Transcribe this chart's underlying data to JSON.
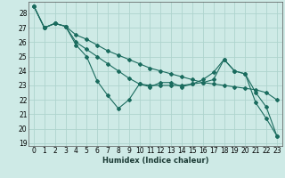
{
  "xlabel": "Humidex (Indice chaleur)",
  "bg_color": "#ceeae6",
  "grid_color": "#aed4ce",
  "line_color": "#1a6b5e",
  "xlim": [
    -0.5,
    23.5
  ],
  "ylim": [
    18.8,
    28.8
  ],
  "yticks": [
    19,
    20,
    21,
    22,
    23,
    24,
    25,
    26,
    27,
    28
  ],
  "xticks": [
    0,
    1,
    2,
    3,
    4,
    5,
    6,
    7,
    8,
    9,
    10,
    11,
    12,
    13,
    14,
    15,
    16,
    17,
    18,
    19,
    20,
    21,
    22,
    23
  ],
  "series": [
    [
      28.5,
      27.0,
      27.3,
      27.1,
      25.8,
      25.0,
      23.3,
      22.3,
      21.4,
      22.0,
      23.1,
      22.9,
      23.2,
      23.2,
      22.9,
      23.1,
      23.4,
      23.9,
      24.8,
      24.0,
      23.8,
      21.8,
      20.7,
      19.5
    ],
    [
      28.5,
      27.0,
      27.3,
      27.1,
      26.5,
      26.2,
      25.8,
      25.4,
      25.1,
      24.8,
      24.5,
      24.2,
      24.0,
      23.8,
      23.6,
      23.4,
      23.2,
      23.1,
      23.0,
      22.9,
      22.8,
      22.7,
      22.5,
      22.0
    ],
    [
      28.5,
      27.0,
      27.3,
      27.1,
      26.0,
      25.5,
      25.0,
      24.5,
      24.0,
      23.5,
      23.1,
      23.0,
      23.0,
      23.0,
      23.0,
      23.1,
      23.2,
      23.4,
      24.8,
      24.0,
      23.8,
      22.5,
      21.5,
      19.5
    ]
  ],
  "tick_fontsize": 5.5,
  "xlabel_fontsize": 6.0
}
